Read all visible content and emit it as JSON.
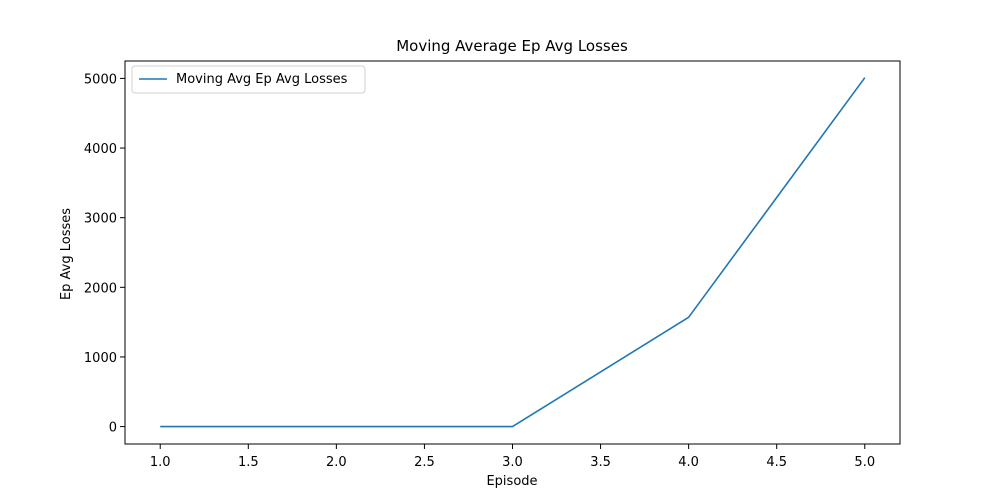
{
  "chart_data": {
    "type": "line",
    "title": "Moving Average Ep Avg Losses",
    "xlabel": "Episode",
    "ylabel": "Ep Avg Losses",
    "xlim": [
      0.8,
      5.2
    ],
    "ylim": [
      -250,
      5250
    ],
    "xticks": [
      1.0,
      1.5,
      2.0,
      2.5,
      3.0,
      3.5,
      4.0,
      4.5,
      5.0
    ],
    "xtick_labels": [
      "1.0",
      "1.5",
      "2.0",
      "2.5",
      "3.0",
      "3.5",
      "4.0",
      "4.5",
      "5.0"
    ],
    "yticks": [
      0,
      1000,
      2000,
      3000,
      4000,
      5000
    ],
    "ytick_labels": [
      "0",
      "1000",
      "2000",
      "3000",
      "4000",
      "5000"
    ],
    "grid": false,
    "legend_position": "upper-left",
    "series": [
      {
        "name": "Moving Avg Ep Avg Losses",
        "color": "#1f77b4",
        "x": [
          1,
          2,
          3,
          4,
          5
        ],
        "y": [
          0,
          0,
          0,
          1570,
          5010
        ]
      }
    ]
  }
}
